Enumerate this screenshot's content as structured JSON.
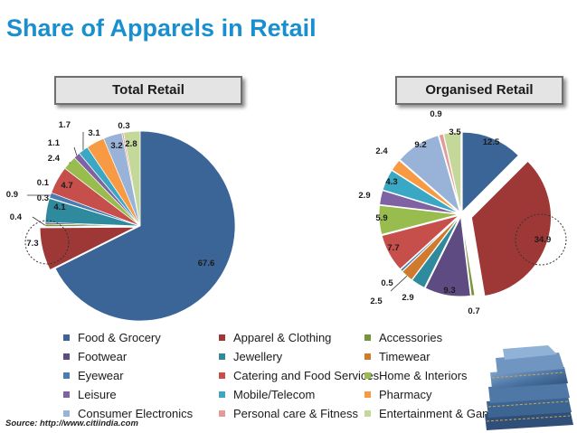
{
  "title": "Share of Apparels in Retail",
  "source": "Source: http://www.citiindia.com",
  "chart_data": [
    {
      "type": "pie",
      "title": "Total Retail",
      "categories": [
        "Food & Grocery",
        "Apparel & Clothing",
        "Accessories",
        "Footwear",
        "Jewellery",
        "Timewear",
        "Eyewear",
        "Catering and Food Services",
        "Home & Interiors",
        "Leisure",
        "Mobile/Telecom",
        "Pharmacy",
        "Consumer Electronics",
        "Personal care & Fitness",
        "Entertainment & Gaming"
      ],
      "values": [
        67.6,
        7.3,
        0.4,
        0.3,
        4.1,
        0.1,
        0.9,
        4.7,
        2.4,
        1.1,
        1.7,
        3.1,
        3.2,
        0.3,
        2.8
      ],
      "labels": [
        "67.6",
        "7.3",
        "0.4",
        "0.3",
        "4.1",
        "0.1",
        "0.9",
        "4.7",
        "2.4",
        "1.1",
        "1.7",
        "3.1",
        "3.2",
        "0.3",
        "2.8"
      ],
      "highlighted_category": "Apparel & Clothing"
    },
    {
      "type": "pie",
      "title": "Organised Retail",
      "categories": [
        "Food & Grocery",
        "Apparel & Clothing",
        "Accessories",
        "Footwear",
        "Jewellery",
        "Timewear",
        "Eyewear",
        "Catering and Food Services",
        "Home & Interiors",
        "Leisure",
        "Mobile/Telecom",
        "Pharmacy",
        "Consumer Electronics",
        "Personal care & Fitness",
        "Entertainment & Gaming"
      ],
      "values": [
        12.5,
        34.9,
        0.7,
        9.3,
        2.9,
        2.5,
        0.5,
        7.7,
        5.9,
        2.9,
        4.3,
        2.4,
        9.2,
        0.9,
        3.5
      ],
      "labels": [
        "12.5",
        "34.9",
        "0.7",
        "9.3",
        "2.9",
        "2.5",
        "0.5",
        "7.7",
        "5.9",
        "2.9",
        "4.3",
        "2.4",
        "9.2",
        "0.9",
        "3.5"
      ],
      "exploded": true,
      "highlighted_category": "Apparel & Clothing"
    }
  ],
  "legend": [
    {
      "label": "Food & Grocery",
      "color": "#3b6497"
    },
    {
      "label": "Apparel & Clothing",
      "color": "#9e3836"
    },
    {
      "label": "Accessories",
      "color": "#77943b"
    },
    {
      "label": "Footwear",
      "color": "#5e4b82"
    },
    {
      "label": "Jewellery",
      "color": "#2f8a9e"
    },
    {
      "label": "Timewear",
      "color": "#d07a2d"
    },
    {
      "label": "Eyewear",
      "color": "#4a7cb3"
    },
    {
      "label": "Catering and Food Services",
      "color": "#c64f4c"
    },
    {
      "label": "Home & Interiors",
      "color": "#98bc4e"
    },
    {
      "label": "Leisure",
      "color": "#7e62a3"
    },
    {
      "label": "Mobile/Telecom",
      "color": "#3aa8c4"
    },
    {
      "label": "Pharmacy",
      "color": "#f79a43"
    },
    {
      "label": "Consumer Electronics",
      "color": "#98b2d8"
    },
    {
      "label": "Personal care & Fitness",
      "color": "#e29b99"
    },
    {
      "label": "Entertainment & Gan",
      "color": "#c4d89a"
    }
  ],
  "image_icon": "folded-jeans-image"
}
